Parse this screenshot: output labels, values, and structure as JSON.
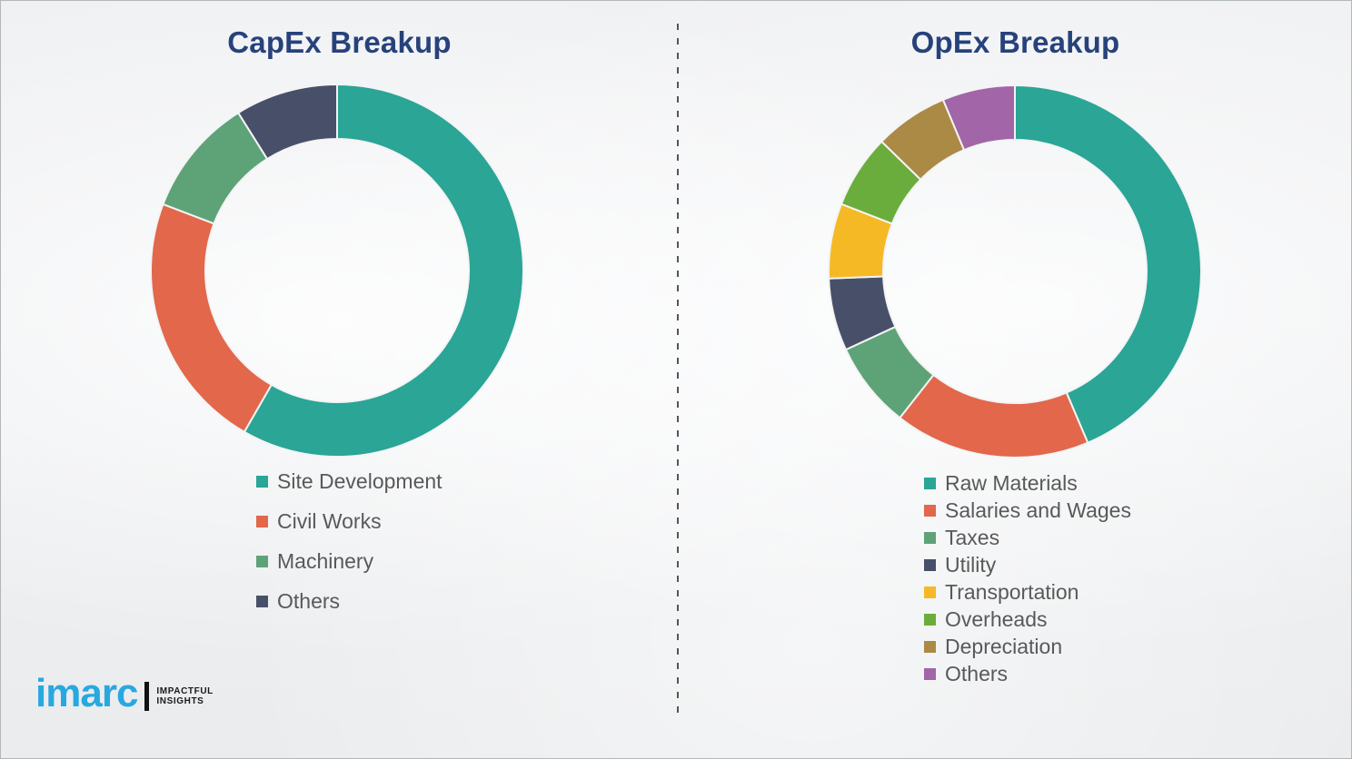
{
  "chart_data": [
    {
      "type": "donut",
      "title": "CapEx Breakup",
      "labels": [
        "Site Development",
        "Civil Works",
        "Machinery",
        "Others"
      ],
      "values": [
        58.3,
        22.5,
        10.3,
        8.9
      ],
      "unit": "percent_estimated_from_arc_angles",
      "colors": [
        "#2AA596",
        "#E2674B",
        "#5EA377",
        "#485069"
      ],
      "start_angle_deg": 0,
      "direction": "clockwise",
      "legend_position": "below-left"
    },
    {
      "type": "donut",
      "title": "OpEx Breakup",
      "labels": [
        "Raw Materials",
        "Salaries and Wages",
        "Taxes",
        "Utility",
        "Transportation",
        "Overheads",
        "Depreciation",
        "Others"
      ],
      "values": [
        43.6,
        17.0,
        7.5,
        6.3,
        6.5,
        6.4,
        6.4,
        6.3
      ],
      "unit": "percent_estimated_from_arc_angles",
      "colors": [
        "#2AA596",
        "#E2674B",
        "#5EA377",
        "#485069",
        "#F6B926",
        "#6BAD3C",
        "#AB8A45",
        "#A165A8"
      ],
      "start_angle_deg": 0,
      "direction": "clockwise",
      "legend_position": "below-left"
    }
  ],
  "logo": {
    "brand": "imarc",
    "brand_color": "#29A8E0",
    "tagline_line1": "IMPACTFUL",
    "tagline_line2": "INSIGHTS"
  },
  "style": {
    "title_color": "#27427B",
    "legend_text_color": "#595959",
    "divider_color": "#555555",
    "background_color": "#EDEFF1"
  }
}
